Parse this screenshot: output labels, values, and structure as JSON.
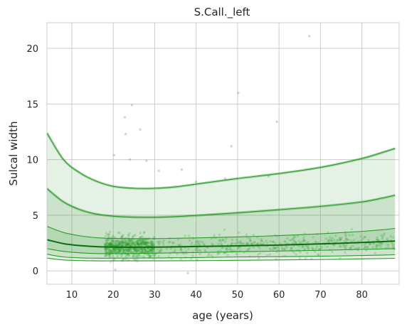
{
  "chart_data": {
    "type": "line",
    "title": "S.Call._left",
    "xlabel": "age (years)",
    "ylabel": "Sulcal width",
    "xlim": [
      4,
      89
    ],
    "ylim": [
      -1.2,
      22.3
    ],
    "xticks": [
      10,
      20,
      30,
      40,
      50,
      60,
      70,
      80
    ],
    "yticks": [
      0,
      5,
      10,
      15,
      20
    ],
    "grid": true,
    "colors": {
      "line": "#2a9a2a",
      "median": "#0a6e0a",
      "band": "#2e8b2e",
      "points": "#32a032"
    },
    "centiles": [
      {
        "x": [
          4,
          8,
          12,
          16,
          20,
          25,
          30,
          35,
          40,
          50,
          60,
          70,
          80,
          85,
          88
        ],
        "y": [
          1.15,
          0.98,
          0.93,
          0.9,
          0.9,
          0.9,
          0.9,
          0.91,
          0.92,
          0.95,
          0.98,
          1.02,
          1.08,
          1.11,
          1.13
        ]
      },
      {
        "x": [
          4,
          8,
          12,
          16,
          20,
          25,
          30,
          35,
          40,
          50,
          60,
          70,
          80,
          85,
          88
        ],
        "y": [
          1.5,
          1.25,
          1.17,
          1.14,
          1.14,
          1.15,
          1.16,
          1.18,
          1.2,
          1.25,
          1.28,
          1.32,
          1.38,
          1.42,
          1.45
        ]
      },
      {
        "x": [
          4,
          8,
          12,
          16,
          20,
          25,
          30,
          35,
          40,
          50,
          60,
          70,
          80,
          85,
          88
        ],
        "y": [
          2.0,
          1.75,
          1.62,
          1.56,
          1.55,
          1.57,
          1.59,
          1.62,
          1.65,
          1.72,
          1.78,
          1.85,
          1.93,
          1.97,
          2.0
        ]
      },
      {
        "x": [
          4,
          8,
          12,
          16,
          20,
          25,
          30,
          35,
          40,
          50,
          60,
          70,
          80,
          85,
          88
        ],
        "y": [
          2.8,
          2.45,
          2.27,
          2.18,
          2.14,
          2.13,
          2.14,
          2.16,
          2.19,
          2.25,
          2.32,
          2.42,
          2.55,
          2.63,
          2.68
        ]
      },
      {
        "x": [
          4,
          8,
          12,
          16,
          20,
          25,
          30,
          35,
          40,
          50,
          60,
          70,
          80,
          85,
          88
        ],
        "y": [
          4.0,
          3.45,
          3.15,
          2.98,
          2.92,
          2.9,
          2.9,
          2.93,
          2.96,
          3.05,
          3.17,
          3.33,
          3.55,
          3.7,
          3.82
        ]
      },
      {
        "x": [
          4,
          8,
          12,
          16,
          20,
          25,
          30,
          35,
          40,
          50,
          60,
          70,
          80,
          85,
          88
        ],
        "y": [
          7.4,
          6.2,
          5.5,
          5.1,
          4.92,
          4.83,
          4.82,
          4.88,
          4.98,
          5.22,
          5.5,
          5.8,
          6.2,
          6.55,
          6.8
        ]
      },
      {
        "x": [
          4,
          8,
          12,
          16,
          20,
          25,
          30,
          35,
          40,
          50,
          60,
          70,
          80,
          85,
          88
        ],
        "y": [
          12.4,
          10.0,
          8.8,
          8.05,
          7.6,
          7.42,
          7.42,
          7.55,
          7.8,
          8.3,
          8.75,
          9.3,
          10.1,
          10.65,
          11.0
        ]
      }
    ],
    "median_index": 3,
    "scatter_summary": "approx. 1200 participant points, ages ~18-88, concentrated 18-30",
    "outliers": [
      {
        "x": 67.3,
        "y": 21.1
      },
      {
        "x": 50.2,
        "y": 16.0
      },
      {
        "x": 24.5,
        "y": 14.9
      },
      {
        "x": 22.8,
        "y": 13.8
      },
      {
        "x": 59.5,
        "y": 13.4
      },
      {
        "x": 26.5,
        "y": 12.7
      },
      {
        "x": 23.0,
        "y": 12.3
      },
      {
        "x": 48.5,
        "y": 11.2
      },
      {
        "x": 20.2,
        "y": 10.4
      },
      {
        "x": 28.0,
        "y": 9.9
      },
      {
        "x": 24.0,
        "y": 10.0
      },
      {
        "x": 36.5,
        "y": 9.1
      },
      {
        "x": 31.0,
        "y": 9.0
      },
      {
        "x": 57.5,
        "y": 8.5
      },
      {
        "x": 47.0,
        "y": 8.3
      },
      {
        "x": 40.0,
        "y": 8.0
      },
      {
        "x": 38.0,
        "y": -0.2
      },
      {
        "x": 20.5,
        "y": 0.1
      }
    ]
  }
}
